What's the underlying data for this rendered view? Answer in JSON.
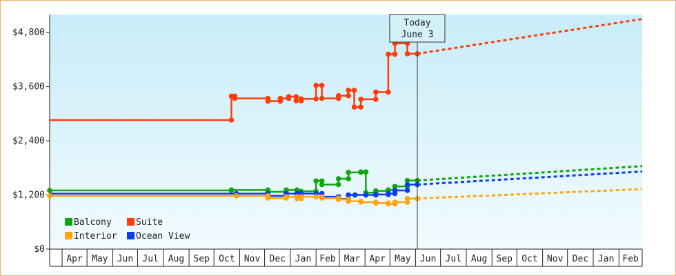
{
  "chart_data": {
    "type": "line",
    "title": "",
    "xlabel": "",
    "ylabel": "",
    "ylim": [
      0,
      5200
    ],
    "yticks": [
      {
        "value": 0,
        "label": "$0"
      },
      {
        "value": 1200,
        "label": "$1,200"
      },
      {
        "value": 2400,
        "label": "$2,400"
      },
      {
        "value": 3600,
        "label": "$3,600"
      },
      {
        "value": 4800,
        "label": "$4,800"
      }
    ],
    "x_range": [
      "2013-03-17",
      "2015-03-01"
    ],
    "months": [
      {
        "label": "Apr",
        "date": "2013-04-01"
      },
      {
        "label": "May",
        "date": "2013-05-01"
      },
      {
        "label": "Jun",
        "date": "2013-06-01"
      },
      {
        "label": "Jul",
        "date": "2013-07-01"
      },
      {
        "label": "Aug",
        "date": "2013-08-01"
      },
      {
        "label": "Sep",
        "date": "2013-09-01"
      },
      {
        "label": "Oct",
        "date": "2013-10-01"
      },
      {
        "label": "Nov",
        "date": "2013-11-01"
      },
      {
        "label": "Dec",
        "date": "2013-12-01"
      },
      {
        "label": "Jan",
        "date": "2014-01-01"
      },
      {
        "label": "Feb",
        "date": "2014-02-01"
      },
      {
        "label": "Mar",
        "date": "2014-03-01"
      },
      {
        "label": "Apr",
        "date": "2014-04-01"
      },
      {
        "label": "May",
        "date": "2014-05-01"
      },
      {
        "label": "Jun",
        "date": "2014-06-01"
      },
      {
        "label": "Jul",
        "date": "2014-07-01"
      },
      {
        "label": "Aug",
        "date": "2014-08-01"
      },
      {
        "label": "Sep",
        "date": "2014-09-01"
      },
      {
        "label": "Oct",
        "date": "2014-10-01"
      },
      {
        "label": "Nov",
        "date": "2014-11-01"
      },
      {
        "label": "Dec",
        "date": "2014-12-01"
      },
      {
        "label": "Jan",
        "date": "2015-01-01"
      },
      {
        "label": "Feb",
        "date": "2015-02-01"
      }
    ],
    "today": {
      "date": "2014-06-03",
      "label_line1": "Today",
      "label_line2": "June 3"
    },
    "legend_position": "bottom-left",
    "grid": false,
    "colors": {
      "background_top": "#c8ecf8",
      "background_bottom": "#f2fbfe",
      "frame_border": "#e8b070"
    },
    "series": [
      {
        "name": "Suite",
        "color": "#ff3c0a",
        "points": [
          {
            "x": "2013-03-17",
            "y": 2860,
            "marker": false
          },
          {
            "x": "2013-10-22",
            "y": 2860
          },
          {
            "x": "2013-10-22",
            "y": 3390
          },
          {
            "x": "2013-10-26",
            "y": 3390
          },
          {
            "x": "2013-10-26",
            "y": 3340
          },
          {
            "x": "2013-12-05",
            "y": 3340
          },
          {
            "x": "2013-12-05",
            "y": 3280
          },
          {
            "x": "2013-12-20",
            "y": 3280
          },
          {
            "x": "2013-12-20",
            "y": 3340
          },
          {
            "x": "2013-12-30",
            "y": 3340
          },
          {
            "x": "2013-12-30",
            "y": 3380
          },
          {
            "x": "2014-01-08",
            "y": 3380
          },
          {
            "x": "2014-01-08",
            "y": 3290
          },
          {
            "x": "2014-01-14",
            "y": 3290
          },
          {
            "x": "2014-01-14",
            "y": 3330
          },
          {
            "x": "2014-02-01",
            "y": 3330
          },
          {
            "x": "2014-02-01",
            "y": 3630
          },
          {
            "x": "2014-02-08",
            "y": 3630
          },
          {
            "x": "2014-02-08",
            "y": 3340
          },
          {
            "x": "2014-02-28",
            "y": 3340
          },
          {
            "x": "2014-02-28",
            "y": 3400
          },
          {
            "x": "2014-03-12",
            "y": 3400
          },
          {
            "x": "2014-03-12",
            "y": 3520
          },
          {
            "x": "2014-03-19",
            "y": 3520
          },
          {
            "x": "2014-03-19",
            "y": 3150
          },
          {
            "x": "2014-03-27",
            "y": 3150
          },
          {
            "x": "2014-03-27",
            "y": 3320
          },
          {
            "x": "2014-04-14",
            "y": 3320
          },
          {
            "x": "2014-04-14",
            "y": 3480
          },
          {
            "x": "2014-04-29",
            "y": 3480
          },
          {
            "x": "2014-04-29",
            "y": 4320
          },
          {
            "x": "2014-05-07",
            "y": 4320
          },
          {
            "x": "2014-05-07",
            "y": 4560
          },
          {
            "x": "2014-05-22",
            "y": 4560
          },
          {
            "x": "2014-05-22",
            "y": 4330
          },
          {
            "x": "2014-06-03",
            "y": 4330
          }
        ],
        "projection": {
          "from": {
            "x": "2014-06-03",
            "y": 4330
          },
          "to": {
            "x": "2015-03-01",
            "y": 5100
          }
        }
      },
      {
        "name": "Balcony",
        "color": "#0ea60e",
        "points": [
          {
            "x": "2013-03-17",
            "y": 1300
          },
          {
            "x": "2013-10-22",
            "y": 1300
          },
          {
            "x": "2013-10-22",
            "y": 1310
          },
          {
            "x": "2013-12-05",
            "y": 1310
          },
          {
            "x": "2013-12-05",
            "y": 1270
          },
          {
            "x": "2013-12-27",
            "y": 1270
          },
          {
            "x": "2013-12-27",
            "y": 1310
          },
          {
            "x": "2014-01-09",
            "y": 1310
          },
          {
            "x": "2014-01-09",
            "y": 1250
          },
          {
            "x": "2014-01-14",
            "y": 1250
          },
          {
            "x": "2014-01-14",
            "y": 1280
          },
          {
            "x": "2014-02-01",
            "y": 1280
          },
          {
            "x": "2014-02-01",
            "y": 1510
          },
          {
            "x": "2014-02-08",
            "y": 1510
          },
          {
            "x": "2014-02-08",
            "y": 1430
          },
          {
            "x": "2014-02-28",
            "y": 1430
          },
          {
            "x": "2014-02-28",
            "y": 1560
          },
          {
            "x": "2014-03-12",
            "y": 1560
          },
          {
            "x": "2014-03-12",
            "y": 1700
          },
          {
            "x": "2014-03-27",
            "y": 1700
          },
          {
            "x": "2014-03-27",
            "y": 1710
          },
          {
            "x": "2014-04-02",
            "y": 1710
          },
          {
            "x": "2014-04-02",
            "y": 1250
          },
          {
            "x": "2014-04-14",
            "y": 1250
          },
          {
            "x": "2014-04-14",
            "y": 1290
          },
          {
            "x": "2014-04-29",
            "y": 1290
          },
          {
            "x": "2014-04-29",
            "y": 1310
          },
          {
            "x": "2014-05-07",
            "y": 1310
          },
          {
            "x": "2014-05-07",
            "y": 1390
          },
          {
            "x": "2014-05-22",
            "y": 1390
          },
          {
            "x": "2014-05-22",
            "y": 1520
          },
          {
            "x": "2014-06-03",
            "y": 1520
          }
        ],
        "projection": {
          "from": {
            "x": "2014-06-03",
            "y": 1520
          },
          "to": {
            "x": "2015-03-01",
            "y": 1840
          }
        }
      },
      {
        "name": "Ocean View",
        "color": "#0a3cf0",
        "points": [
          {
            "x": "2013-03-17",
            "y": 1230,
            "marker": false
          },
          {
            "x": "2013-10-28",
            "y": 1230
          },
          {
            "x": "2013-12-05",
            "y": 1230
          },
          {
            "x": "2013-12-05",
            "y": 1180
          },
          {
            "x": "2013-12-27",
            "y": 1180
          },
          {
            "x": "2013-12-27",
            "y": 1230
          },
          {
            "x": "2014-01-09",
            "y": 1230
          },
          {
            "x": "2014-01-09",
            "y": 1160
          },
          {
            "x": "2014-01-14",
            "y": 1160
          },
          {
            "x": "2014-01-14",
            "y": 1230
          },
          {
            "x": "2014-02-01",
            "y": 1230
          },
          {
            "x": "2014-02-08",
            "y": 1230
          },
          {
            "x": "2014-02-08",
            "y": 1160
          },
          {
            "x": "2014-02-28",
            "y": 1160
          },
          {
            "x": "2014-02-28",
            "y": 1110
          },
          {
            "x": "2014-03-12",
            "y": 1110
          },
          {
            "x": "2014-03-12",
            "y": 1200
          },
          {
            "x": "2014-03-20",
            "y": 1200
          },
          {
            "x": "2014-04-02",
            "y": 1200
          },
          {
            "x": "2014-04-14",
            "y": 1200
          },
          {
            "x": "2014-04-14",
            "y": 1210
          },
          {
            "x": "2014-04-29",
            "y": 1210
          },
          {
            "x": "2014-04-29",
            "y": 1230
          },
          {
            "x": "2014-05-07",
            "y": 1230
          },
          {
            "x": "2014-05-07",
            "y": 1300
          },
          {
            "x": "2014-05-22",
            "y": 1300
          },
          {
            "x": "2014-05-22",
            "y": 1430
          },
          {
            "x": "2014-06-03",
            "y": 1430
          }
        ],
        "projection": {
          "from": {
            "x": "2014-06-03",
            "y": 1430
          },
          "to": {
            "x": "2015-03-01",
            "y": 1720
          }
        }
      },
      {
        "name": "Interior",
        "color": "#ffa40a",
        "points": [
          {
            "x": "2013-03-17",
            "y": 1180
          },
          {
            "x": "2013-10-28",
            "y": 1180
          },
          {
            "x": "2013-12-05",
            "y": 1180
          },
          {
            "x": "2013-12-05",
            "y": 1130
          },
          {
            "x": "2013-12-27",
            "y": 1130
          },
          {
            "x": "2013-12-27",
            "y": 1160
          },
          {
            "x": "2014-01-09",
            "y": 1160
          },
          {
            "x": "2014-01-09",
            "y": 1120
          },
          {
            "x": "2014-01-14",
            "y": 1120
          },
          {
            "x": "2014-01-14",
            "y": 1160
          },
          {
            "x": "2014-02-01",
            "y": 1160
          },
          {
            "x": "2014-02-08",
            "y": 1160
          },
          {
            "x": "2014-02-08",
            "y": 1130
          },
          {
            "x": "2014-02-28",
            "y": 1130
          },
          {
            "x": "2014-02-28",
            "y": 1100
          },
          {
            "x": "2014-03-12",
            "y": 1100
          },
          {
            "x": "2014-03-12",
            "y": 1060
          },
          {
            "x": "2014-03-27",
            "y": 1060
          },
          {
            "x": "2014-03-27",
            "y": 1040
          },
          {
            "x": "2014-04-14",
            "y": 1040
          },
          {
            "x": "2014-04-14",
            "y": 1020
          },
          {
            "x": "2014-04-29",
            "y": 1020
          },
          {
            "x": "2014-04-29",
            "y": 1000
          },
          {
            "x": "2014-05-07",
            "y": 1000
          },
          {
            "x": "2014-05-07",
            "y": 1040
          },
          {
            "x": "2014-05-22",
            "y": 1040
          },
          {
            "x": "2014-05-22",
            "y": 1120
          },
          {
            "x": "2014-06-03",
            "y": 1120
          }
        ],
        "projection": {
          "from": {
            "x": "2014-06-03",
            "y": 1120
          },
          "to": {
            "x": "2015-03-01",
            "y": 1330
          }
        }
      }
    ],
    "legend": [
      {
        "name": "Balcony",
        "color": "#0ea60e"
      },
      {
        "name": "Suite",
        "color": "#ff3c0a"
      },
      {
        "name": "Interior",
        "color": "#ffa40a"
      },
      {
        "name": "Ocean View",
        "color": "#0a3cf0"
      }
    ]
  }
}
